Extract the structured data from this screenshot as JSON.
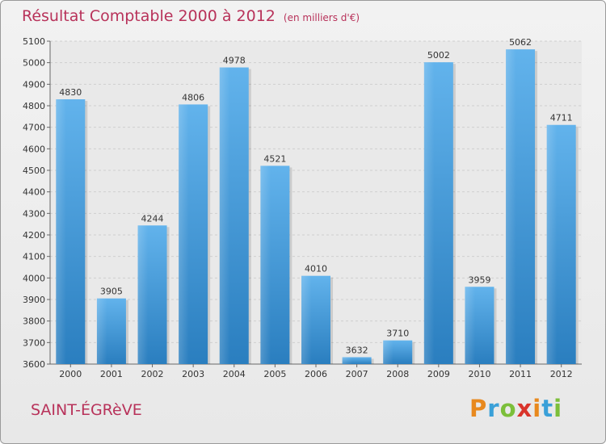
{
  "header": {
    "title": "Résultat Comptable 2000 à 2012",
    "subtitle": "(en milliers d'€)"
  },
  "footer": {
    "commune": "SAINT-ÉGRèVE",
    "logo": "Proxiti"
  },
  "colors": {
    "accent": "#b8325a",
    "bar_light": "#5fb0ea",
    "bar_dark": "#2a7ebf"
  },
  "chart_data": {
    "type": "bar",
    "title": "Résultat Comptable 2000 à 2012",
    "subtitle": "(en milliers d'€)",
    "xlabel": "",
    "ylabel": "",
    "categories": [
      "2000",
      "2001",
      "2002",
      "2003",
      "2004",
      "2005",
      "2006",
      "2007",
      "2008",
      "2009",
      "2010",
      "2011",
      "2012"
    ],
    "values": [
      4830,
      3905,
      4244,
      4806,
      4978,
      4521,
      4010,
      3632,
      3710,
      5002,
      3959,
      5062,
      4711
    ],
    "ylim": [
      3600,
      5100
    ],
    "yticks": [
      3600,
      3700,
      3800,
      3900,
      4000,
      4100,
      4200,
      4300,
      4400,
      4500,
      4600,
      4700,
      4800,
      4900,
      5000,
      5100
    ],
    "grid": true
  }
}
